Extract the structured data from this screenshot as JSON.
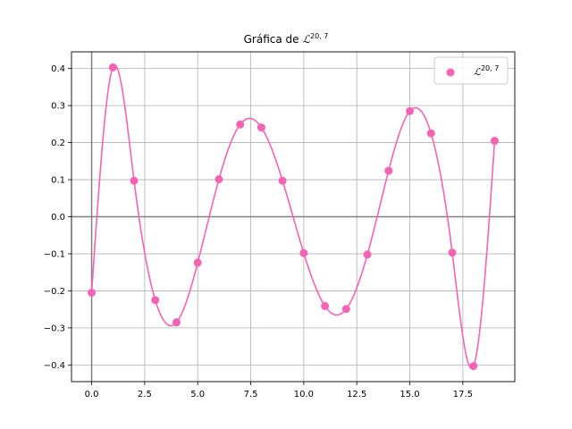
{
  "chart_data": {
    "type": "scatter",
    "title": "Gráfica de ℒ²⁰ʼ⁷",
    "title_main": "Gráfica de ",
    "title_symbol": "ℒ",
    "title_superscript": "20, 7",
    "xlabel": "",
    "ylabel": "",
    "xlim": [
      -0.95,
      19.95
    ],
    "ylim": [
      -0.445,
      0.445
    ],
    "x_ticks": [
      0.0,
      2.5,
      5.0,
      7.5,
      10.0,
      12.5,
      15.0,
      17.5
    ],
    "x_tick_labels": [
      "0.0",
      "2.5",
      "5.0",
      "7.5",
      "10.0",
      "12.5",
      "15.0",
      "17.5"
    ],
    "y_ticks": [
      -0.4,
      -0.3,
      -0.2,
      -0.1,
      0.0,
      0.1,
      0.2,
      0.3,
      0.4
    ],
    "y_tick_labels": [
      "−0.4",
      "−0.3",
      "−0.2",
      "−0.1",
      "0.0",
      "0.1",
      "0.2",
      "0.3",
      "0.4"
    ],
    "grid": true,
    "legend_position": "top-right",
    "series": [
      {
        "name": "ℒ²⁰ʼ⁷",
        "legend_symbol": "ℒ",
        "legend_superscript": "20, 7",
        "color": "#f564b4",
        "x": [
          0,
          1,
          2,
          3,
          4,
          5,
          6,
          7,
          8,
          9,
          10,
          11,
          12,
          13,
          14,
          15,
          16,
          17,
          18,
          19
        ],
        "y": [
          -0.205,
          0.403,
          0.097,
          -0.225,
          -0.285,
          -0.124,
          0.101,
          0.249,
          0.241,
          0.097,
          -0.098,
          -0.241,
          -0.249,
          -0.102,
          0.124,
          0.285,
          0.225,
          -0.097,
          -0.403,
          0.205
        ]
      }
    ]
  }
}
